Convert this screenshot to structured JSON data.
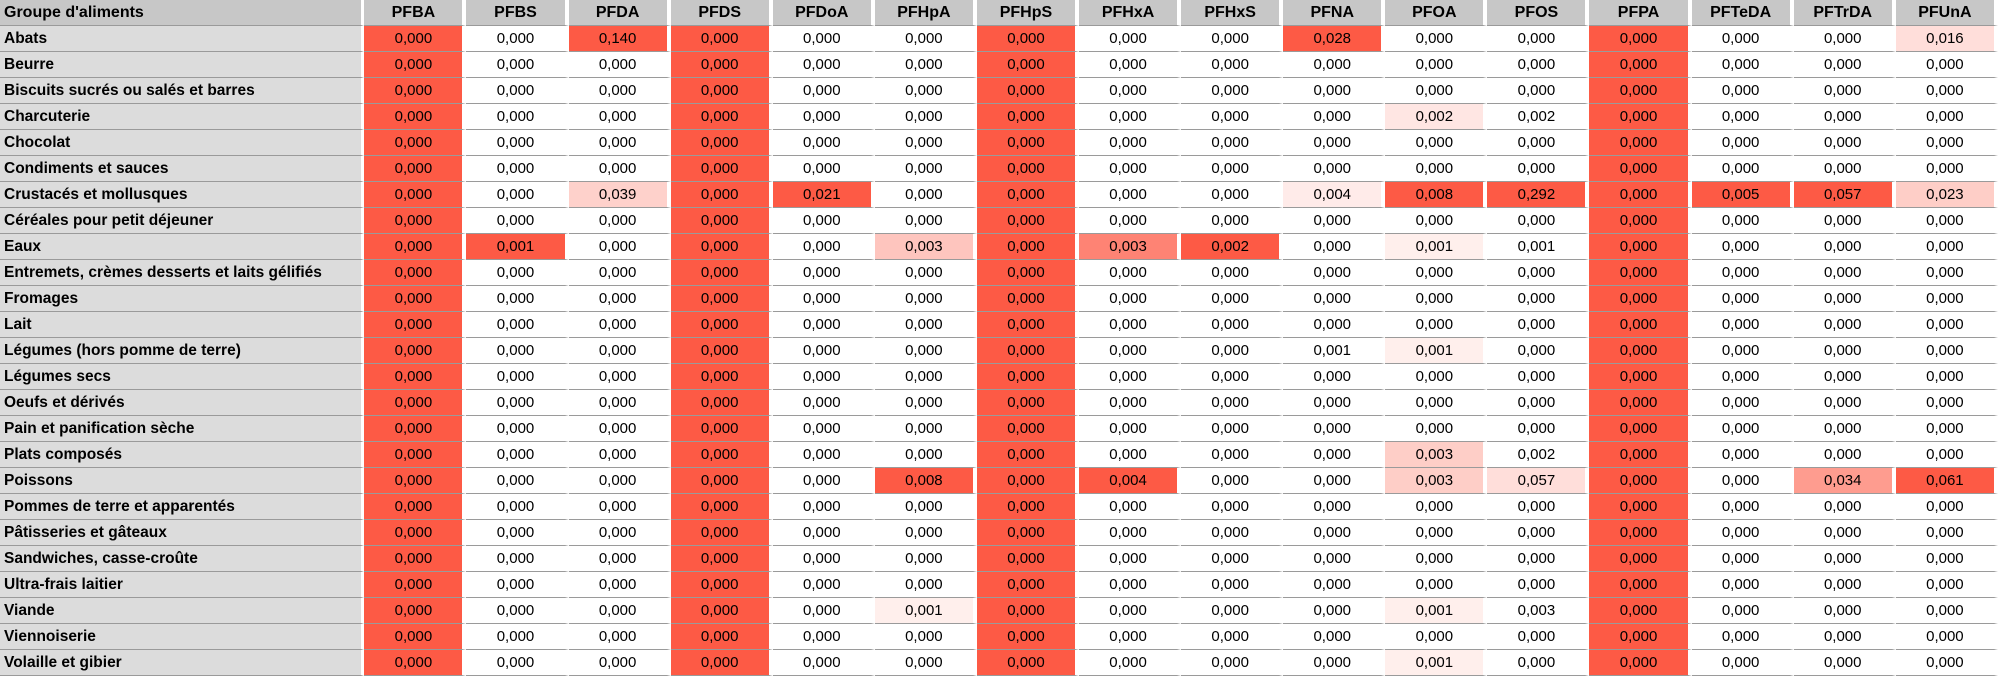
{
  "chart_data": {
    "type": "heatmap",
    "corner_label": "Groupe d'aliments",
    "columns": [
      "PFBA",
      "PFBS",
      "PFDA",
      "PFDS",
      "PFDoA",
      "PFHpA",
      "PFHpS",
      "PFHxA",
      "PFHxS",
      "PFNA",
      "PFOA",
      "PFOS",
      "PFPA",
      "PFTeDA",
      "PFTrDA",
      "PFUnA"
    ],
    "rows": [
      "Abats",
      "Beurre",
      "Biscuits sucrés ou salés et barres",
      "Charcuterie",
      "Chocolat",
      "Condiments et sauces",
      "Crustacés et mollusques",
      "Céréales pour petit déjeuner",
      "Eaux",
      "Entremets, crèmes desserts et laits gélifiés",
      "Fromages",
      "Lait",
      "Légumes (hors pomme de terre)",
      "Légumes secs",
      "Oeufs et dérivés",
      "Pain et panification sèche",
      "Plats composés",
      "Poissons",
      "Pommes de terre et apparentés",
      "Pâtisseries et gâteaux",
      "Sandwiches, casse-croûte",
      "Ultra-frais laitier",
      "Viande",
      "Viennoiserie",
      "Volaille et gibier"
    ],
    "values": [
      [
        "0,000",
        "0,000",
        "0,140",
        "0,000",
        "0,000",
        "0,000",
        "0,000",
        "0,000",
        "0,000",
        "0,028",
        "0,000",
        "0,000",
        "0,000",
        "0,000",
        "0,000",
        "0,016"
      ],
      [
        "0,000",
        "0,000",
        "0,000",
        "0,000",
        "0,000",
        "0,000",
        "0,000",
        "0,000",
        "0,000",
        "0,000",
        "0,000",
        "0,000",
        "0,000",
        "0,000",
        "0,000",
        "0,000"
      ],
      [
        "0,000",
        "0,000",
        "0,000",
        "0,000",
        "0,000",
        "0,000",
        "0,000",
        "0,000",
        "0,000",
        "0,000",
        "0,000",
        "0,000",
        "0,000",
        "0,000",
        "0,000",
        "0,000"
      ],
      [
        "0,000",
        "0,000",
        "0,000",
        "0,000",
        "0,000",
        "0,000",
        "0,000",
        "0,000",
        "0,000",
        "0,000",
        "0,002",
        "0,002",
        "0,000",
        "0,000",
        "0,000",
        "0,000"
      ],
      [
        "0,000",
        "0,000",
        "0,000",
        "0,000",
        "0,000",
        "0,000",
        "0,000",
        "0,000",
        "0,000",
        "0,000",
        "0,000",
        "0,000",
        "0,000",
        "0,000",
        "0,000",
        "0,000"
      ],
      [
        "0,000",
        "0,000",
        "0,000",
        "0,000",
        "0,000",
        "0,000",
        "0,000",
        "0,000",
        "0,000",
        "0,000",
        "0,000",
        "0,000",
        "0,000",
        "0,000",
        "0,000",
        "0,000"
      ],
      [
        "0,000",
        "0,000",
        "0,039",
        "0,000",
        "0,021",
        "0,000",
        "0,000",
        "0,000",
        "0,000",
        "0,004",
        "0,008",
        "0,292",
        "0,000",
        "0,005",
        "0,057",
        "0,023"
      ],
      [
        "0,000",
        "0,000",
        "0,000",
        "0,000",
        "0,000",
        "0,000",
        "0,000",
        "0,000",
        "0,000",
        "0,000",
        "0,000",
        "0,000",
        "0,000",
        "0,000",
        "0,000",
        "0,000"
      ],
      [
        "0,000",
        "0,001",
        "0,000",
        "0,000",
        "0,000",
        "0,003",
        "0,000",
        "0,003",
        "0,002",
        "0,000",
        "0,001",
        "0,001",
        "0,000",
        "0,000",
        "0,000",
        "0,000"
      ],
      [
        "0,000",
        "0,000",
        "0,000",
        "0,000",
        "0,000",
        "0,000",
        "0,000",
        "0,000",
        "0,000",
        "0,000",
        "0,000",
        "0,000",
        "0,000",
        "0,000",
        "0,000",
        "0,000"
      ],
      [
        "0,000",
        "0,000",
        "0,000",
        "0,000",
        "0,000",
        "0,000",
        "0,000",
        "0,000",
        "0,000",
        "0,000",
        "0,000",
        "0,000",
        "0,000",
        "0,000",
        "0,000",
        "0,000"
      ],
      [
        "0,000",
        "0,000",
        "0,000",
        "0,000",
        "0,000",
        "0,000",
        "0,000",
        "0,000",
        "0,000",
        "0,000",
        "0,000",
        "0,000",
        "0,000",
        "0,000",
        "0,000",
        "0,000"
      ],
      [
        "0,000",
        "0,000",
        "0,000",
        "0,000",
        "0,000",
        "0,000",
        "0,000",
        "0,000",
        "0,000",
        "0,001",
        "0,001",
        "0,000",
        "0,000",
        "0,000",
        "0,000",
        "0,000"
      ],
      [
        "0,000",
        "0,000",
        "0,000",
        "0,000",
        "0,000",
        "0,000",
        "0,000",
        "0,000",
        "0,000",
        "0,000",
        "0,000",
        "0,000",
        "0,000",
        "0,000",
        "0,000",
        "0,000"
      ],
      [
        "0,000",
        "0,000",
        "0,000",
        "0,000",
        "0,000",
        "0,000",
        "0,000",
        "0,000",
        "0,000",
        "0,000",
        "0,000",
        "0,000",
        "0,000",
        "0,000",
        "0,000",
        "0,000"
      ],
      [
        "0,000",
        "0,000",
        "0,000",
        "0,000",
        "0,000",
        "0,000",
        "0,000",
        "0,000",
        "0,000",
        "0,000",
        "0,000",
        "0,000",
        "0,000",
        "0,000",
        "0,000",
        "0,000"
      ],
      [
        "0,000",
        "0,000",
        "0,000",
        "0,000",
        "0,000",
        "0,000",
        "0,000",
        "0,000",
        "0,000",
        "0,000",
        "0,003",
        "0,002",
        "0,000",
        "0,000",
        "0,000",
        "0,000"
      ],
      [
        "0,000",
        "0,000",
        "0,000",
        "0,000",
        "0,000",
        "0,008",
        "0,000",
        "0,004",
        "0,000",
        "0,000",
        "0,003",
        "0,057",
        "0,000",
        "0,000",
        "0,034",
        "0,061"
      ],
      [
        "0,000",
        "0,000",
        "0,000",
        "0,000",
        "0,000",
        "0,000",
        "0,000",
        "0,000",
        "0,000",
        "0,000",
        "0,000",
        "0,000",
        "0,000",
        "0,000",
        "0,000",
        "0,000"
      ],
      [
        "0,000",
        "0,000",
        "0,000",
        "0,000",
        "0,000",
        "0,000",
        "0,000",
        "0,000",
        "0,000",
        "0,000",
        "0,000",
        "0,000",
        "0,000",
        "0,000",
        "0,000",
        "0,000"
      ],
      [
        "0,000",
        "0,000",
        "0,000",
        "0,000",
        "0,000",
        "0,000",
        "0,000",
        "0,000",
        "0,000",
        "0,000",
        "0,000",
        "0,000",
        "0,000",
        "0,000",
        "0,000",
        "0,000"
      ],
      [
        "0,000",
        "0,000",
        "0,000",
        "0,000",
        "0,000",
        "0,000",
        "0,000",
        "0,000",
        "0,000",
        "0,000",
        "0,000",
        "0,000",
        "0,000",
        "0,000",
        "0,000",
        "0,000"
      ],
      [
        "0,000",
        "0,000",
        "0,000",
        "0,000",
        "0,000",
        "0,001",
        "0,000",
        "0,000",
        "0,000",
        "0,000",
        "0,001",
        "0,003",
        "0,000",
        "0,000",
        "0,000",
        "0,000"
      ],
      [
        "0,000",
        "0,000",
        "0,000",
        "0,000",
        "0,000",
        "0,000",
        "0,000",
        "0,000",
        "0,000",
        "0,000",
        "0,000",
        "0,000",
        "0,000",
        "0,000",
        "0,000",
        "0,000"
      ],
      [
        "0,000",
        "0,000",
        "0,000",
        "0,000",
        "0,000",
        "0,000",
        "0,000",
        "0,000",
        "0,000",
        "0,000",
        "0,001",
        "0,000",
        "0,000",
        "0,000",
        "0,000",
        "0,000"
      ]
    ],
    "fill_levels": [
      [
        1,
        0,
        1,
        1,
        0,
        0,
        1,
        0,
        0,
        1,
        0,
        0,
        1,
        0,
        0,
        0.2
      ],
      [
        1,
        0,
        0,
        1,
        0,
        0,
        1,
        0,
        0,
        0,
        0,
        0,
        1,
        0,
        0,
        0
      ],
      [
        1,
        0,
        0,
        1,
        0,
        0,
        1,
        0,
        0,
        0,
        0,
        0,
        1,
        0,
        0,
        0
      ],
      [
        1,
        0,
        0,
        1,
        0,
        0,
        1,
        0,
        0,
        0,
        0.15,
        0,
        1,
        0,
        0,
        0
      ],
      [
        1,
        0,
        0,
        1,
        0,
        0,
        1,
        0,
        0,
        0,
        0,
        0,
        1,
        0,
        0,
        0
      ],
      [
        1,
        0,
        0,
        1,
        0,
        0,
        1,
        0,
        0,
        0,
        0,
        0,
        1,
        0,
        0,
        0
      ],
      [
        1,
        0,
        0.28,
        1,
        1,
        0,
        1,
        0,
        0,
        0.12,
        1,
        1,
        1,
        1,
        1,
        0.3
      ],
      [
        1,
        0,
        0,
        1,
        0,
        0,
        1,
        0,
        0,
        0,
        0,
        0,
        1,
        0,
        0,
        0
      ],
      [
        1,
        1,
        0,
        1,
        0,
        0.35,
        1,
        0.75,
        1,
        0,
        0.1,
        0,
        1,
        0,
        0,
        0
      ],
      [
        1,
        0,
        0,
        1,
        0,
        0,
        1,
        0,
        0,
        0,
        0,
        0,
        1,
        0,
        0,
        0
      ],
      [
        1,
        0,
        0,
        1,
        0,
        0,
        1,
        0,
        0,
        0,
        0,
        0,
        1,
        0,
        0,
        0
      ],
      [
        1,
        0,
        0,
        1,
        0,
        0,
        1,
        0,
        0,
        0,
        0,
        0,
        1,
        0,
        0,
        0
      ],
      [
        1,
        0,
        0,
        1,
        0,
        0,
        1,
        0,
        0,
        0,
        0.1,
        0,
        1,
        0,
        0,
        0
      ],
      [
        1,
        0,
        0,
        1,
        0,
        0,
        1,
        0,
        0,
        0,
        0,
        0,
        1,
        0,
        0,
        0
      ],
      [
        1,
        0,
        0,
        1,
        0,
        0,
        1,
        0,
        0,
        0,
        0,
        0,
        1,
        0,
        0,
        0
      ],
      [
        1,
        0,
        0,
        1,
        0,
        0,
        1,
        0,
        0,
        0,
        0,
        0,
        1,
        0,
        0,
        0
      ],
      [
        1,
        0,
        0,
        1,
        0,
        0,
        1,
        0,
        0,
        0,
        0.3,
        0,
        1,
        0,
        0,
        0
      ],
      [
        1,
        0,
        0,
        1,
        0,
        1,
        1,
        1,
        0,
        0,
        0.3,
        0.2,
        1,
        0,
        0.6,
        1
      ],
      [
        1,
        0,
        0,
        1,
        0,
        0,
        1,
        0,
        0,
        0,
        0,
        0,
        1,
        0,
        0,
        0
      ],
      [
        1,
        0,
        0,
        1,
        0,
        0,
        1,
        0,
        0,
        0,
        0,
        0,
        1,
        0,
        0,
        0
      ],
      [
        1,
        0,
        0,
        1,
        0,
        0,
        1,
        0,
        0,
        0,
        0,
        0,
        1,
        0,
        0,
        0
      ],
      [
        1,
        0,
        0,
        1,
        0,
        0,
        1,
        0,
        0,
        0,
        0,
        0,
        1,
        0,
        0,
        0
      ],
      [
        1,
        0,
        0,
        1,
        0,
        0.1,
        1,
        0,
        0,
        0,
        0.1,
        0,
        1,
        0,
        0,
        0
      ],
      [
        1,
        0,
        0,
        1,
        0,
        0,
        1,
        0,
        0,
        0,
        0,
        0,
        1,
        0,
        0,
        0
      ],
      [
        1,
        0,
        0,
        1,
        0,
        0,
        1,
        0,
        0,
        0,
        0.1,
        0,
        1,
        0,
        0,
        0
      ]
    ],
    "colors": {
      "high": "#fd5a45",
      "low": "#ffffff",
      "header_bg": "#c7c7c7",
      "row_label_bg": "#dcdcdc"
    }
  }
}
